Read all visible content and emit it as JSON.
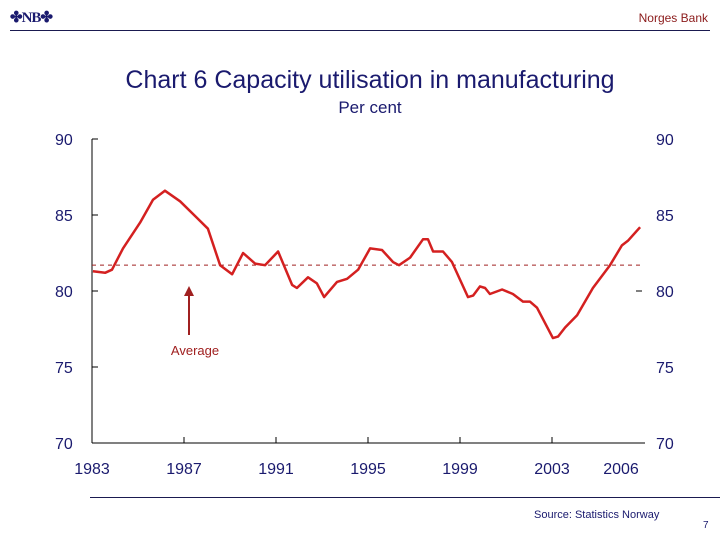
{
  "header": {
    "logo_text": "NB",
    "bank_name": "Norges Bank"
  },
  "footer": {
    "source": "Source: Statistics Norway",
    "page_number": "7"
  },
  "chart_data": {
    "type": "line",
    "title": "Chart 6 Capacity utilisation in manufacturing",
    "subtitle": "Per cent",
    "xlim": [
      1983,
      2007
    ],
    "ylim": [
      70,
      90
    ],
    "x_tick_labels": [
      "1983",
      "1987",
      "1991",
      "1995",
      "1999",
      "2003",
      "2006"
    ],
    "x_ticks": [
      1983,
      1987,
      1991,
      1995,
      1999,
      2003,
      2006
    ],
    "y_ticks": [
      70,
      75,
      80,
      85,
      90
    ],
    "y_tick_labels": [
      "70",
      "75",
      "80",
      "85",
      "90"
    ],
    "grid": false,
    "line_color": "#d42020",
    "average": {
      "value": 81.7,
      "label": "Average",
      "color": "#a02020"
    },
    "series": [
      {
        "x": [
          1983.04,
          1983.57,
          1983.87,
          1984.35,
          1985.09,
          1985.65,
          1986.17,
          1986.83,
          1987.57,
          1988.04,
          1988.57,
          1989.09,
          1989.57,
          1990.09,
          1990.52,
          1991.09,
          1991.7,
          1991.91,
          1992.39,
          1992.78,
          1993.09,
          1993.65,
          1994.09,
          1994.57,
          1995.09,
          1995.61,
          1996.09,
          1996.35,
          1996.83,
          1997.39,
          1997.61,
          1997.83,
          1998.26,
          1998.65,
          1999.35,
          1999.57,
          1999.87,
          2000.09,
          2000.3,
          2000.83,
          2001.3,
          2001.74,
          2002.04,
          2002.35,
          2003.04,
          2003.26,
          2003.57,
          2004.09,
          2004.78,
          2005.52,
          2006.04,
          2006.3,
          2006.83
        ],
        "y": [
          81.3,
          81.2,
          81.4,
          82.8,
          84.5,
          86.0,
          86.6,
          85.9,
          84.8,
          84.1,
          81.7,
          81.1,
          82.5,
          81.8,
          81.7,
          82.6,
          80.4,
          80.2,
          80.9,
          80.5,
          79.6,
          80.6,
          80.8,
          81.4,
          82.8,
          82.7,
          81.9,
          81.7,
          82.2,
          83.4,
          83.4,
          82.6,
          82.6,
          81.9,
          79.6,
          79.7,
          80.3,
          80.2,
          79.8,
          80.1,
          79.8,
          79.3,
          79.3,
          78.9,
          76.9,
          77.0,
          77.6,
          78.4,
          80.2,
          81.7,
          83.0,
          83.3,
          84.2
        ]
      }
    ]
  }
}
